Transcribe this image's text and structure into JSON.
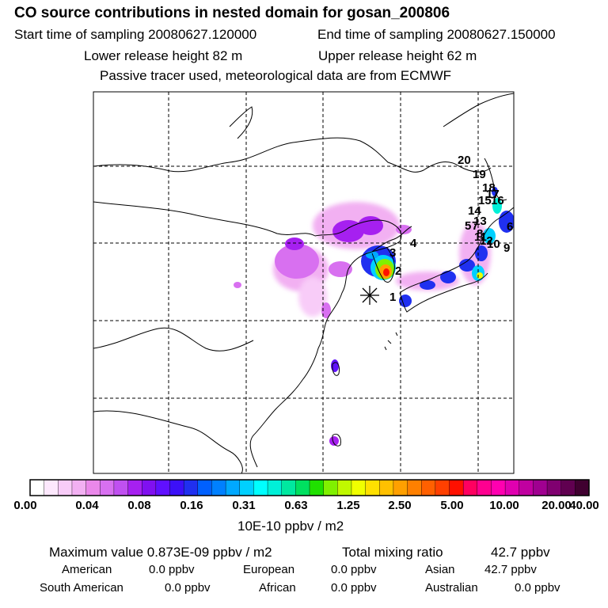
{
  "header": {
    "title": "CO  source contributions in nested domain for gosan_200806",
    "start_label": "Start time of sampling 20080627.120000",
    "end_label": "End time of sampling 20080627.150000",
    "lower_label": "Lower release height   82 m",
    "upper_label": "Upper release height   62 m",
    "info": "Passive tracer used, meteorological data are from ECMWF"
  },
  "map": {
    "station_icon": "asterisk-icon",
    "labels": [
      "1",
      "2",
      "3",
      "4",
      "5",
      "6",
      "7",
      "8",
      "9",
      "10",
      "11",
      "12",
      "13",
      "14",
      "15",
      "16",
      "17",
      "18",
      "19",
      "20"
    ]
  },
  "colorbar": {
    "tick_labels": [
      "0.00",
      "0.04",
      "0.08",
      "0.16",
      "0.31",
      "0.63",
      "1.25",
      "2.50",
      "5.00",
      "10.00",
      "20.00",
      "40.00"
    ],
    "colors": [
      "#ffffff",
      "#fde8fd",
      "#f8ccf8",
      "#f2b0f2",
      "#ea88ea",
      "#d870f0",
      "#c050f0",
      "#a620f0",
      "#8010f0",
      "#6010ff",
      "#3c10f8",
      "#2030f0",
      "#0060ff",
      "#0080ff",
      "#00a8ff",
      "#00d0ff",
      "#00ffff",
      "#00f0d8",
      "#00e8a0",
      "#00e060",
      "#20e000",
      "#80f000",
      "#c0f800",
      "#f0ff00",
      "#ffe000",
      "#ffc000",
      "#ffa000",
      "#ff8000",
      "#ff6000",
      "#ff4000",
      "#ff1000",
      "#ff0060",
      "#ff0090",
      "#ff00b0",
      "#e000b0",
      "#c000a0",
      "#a00090",
      "#800070",
      "#600050",
      "#400030"
    ],
    "unit": "10E-10 ppbv / m2"
  },
  "stats": {
    "max_label": "Maximum value  0.873E-09 ppbv / m2",
    "total_label": "Total mixing ratio",
    "total_value": "42.7 ppbv"
  },
  "regions": [
    {
      "name": "American",
      "value": "0.0 ppbv"
    },
    {
      "name": "European",
      "value": "0.0 ppbv"
    },
    {
      "name": "Asian",
      "value": "42.7 ppbv"
    },
    {
      "name": "South American",
      "value": "0.0 ppbv"
    },
    {
      "name": "African",
      "value": "0.0 ppbv"
    },
    {
      "name": "Australian",
      "value": "0.0 ppbv"
    }
  ]
}
